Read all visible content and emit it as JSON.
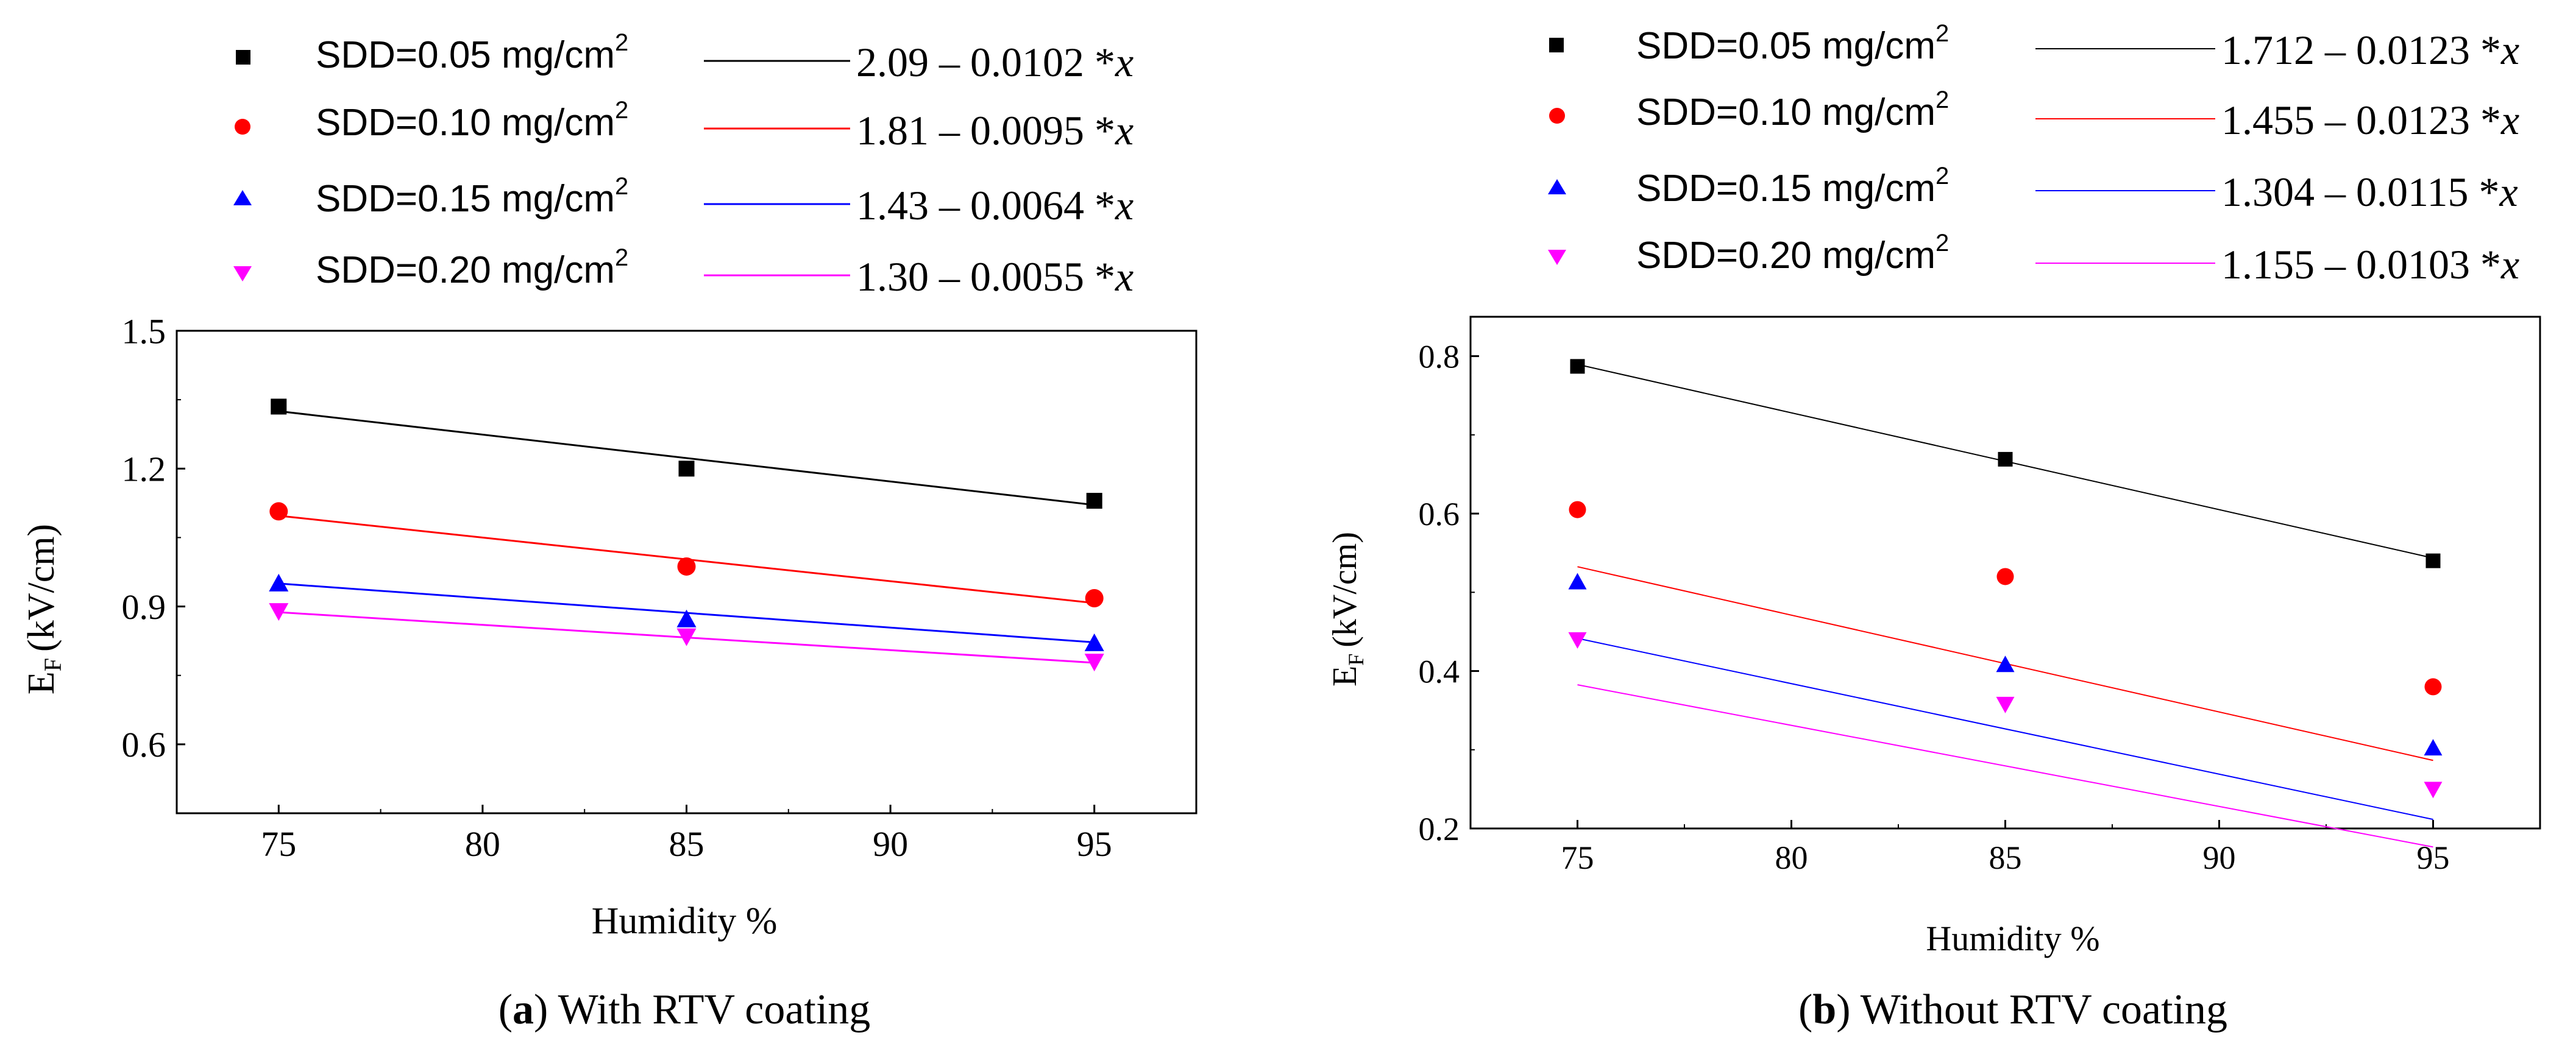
{
  "figure": {
    "panels": [
      {
        "caption_letter": "a",
        "caption_text": "With RTV coating",
        "legend": [
          {
            "series": "SDD=0.05 mg/cm",
            "sup": "2",
            "equation": "2.09 – 0.0102 *",
            "variable": "x"
          },
          {
            "series": "SDD=0.10 mg/cm",
            "sup": "2",
            "equation": "1.81 – 0.0095 *",
            "variable": "x"
          },
          {
            "series": "SDD=0.15 mg/cm",
            "sup": "2",
            "equation": "1.43 – 0.0064 *",
            "variable": "x"
          },
          {
            "series": "SDD=0.20 mg/cm",
            "sup": "2",
            "equation": "1.30 – 0.0055 *",
            "variable": "x"
          }
        ]
      },
      {
        "caption_letter": "b",
        "caption_text": "Without RTV coating",
        "legend": [
          {
            "series": "SDD=0.05 mg/cm",
            "sup": "2",
            "equation": "1.712 – 0.0123 *",
            "variable": "x"
          },
          {
            "series": "SDD=0.10 mg/cm",
            "sup": "2",
            "equation": "1.455 – 0.0123 *",
            "variable": "x"
          },
          {
            "series": "SDD=0.15 mg/cm",
            "sup": "2",
            "equation": "1.304 – 0.0115 *",
            "variable": "x"
          },
          {
            "series": "SDD=0.20 mg/cm",
            "sup": "2",
            "equation": "1.155 – 0.0103 *",
            "variable": "x"
          }
        ]
      }
    ]
  },
  "chart_data": [
    {
      "type": "scatter",
      "title": "",
      "xlabel": "Humidity %",
      "ylabel": "E",
      "ylabel_sub": "F",
      "ylabel_unit": "(kV/cm)",
      "xlim": [
        72.5,
        97.5
      ],
      "ylim": [
        0.45,
        1.5
      ],
      "xticks": [
        75,
        80,
        85,
        90,
        95
      ],
      "yticks": [
        0.6,
        0.9,
        1.2,
        1.5
      ],
      "ytick_labels": [
        "0.6",
        "0.9",
        "1.2",
        "1.5"
      ],
      "grid": false,
      "legend_position": "above plot",
      "x": [
        75,
        85,
        95
      ],
      "series": [
        {
          "name": "SDD=0.05 mg/cm2",
          "marker": "square",
          "color": "#000000",
          "values": [
            1.335,
            1.2,
            1.13
          ],
          "fit": {
            "intercept": 2.09,
            "slope": -0.0102
          }
        },
        {
          "name": "SDD=0.10 mg/cm2",
          "marker": "circle",
          "color": "#ff0000",
          "values": [
            1.107,
            0.987,
            0.918
          ],
          "fit": {
            "intercept": 1.81,
            "slope": -0.0095
          }
        },
        {
          "name": "SDD=0.15 mg/cm2",
          "marker": "triangle-up",
          "color": "#0000ff",
          "values": [
            0.95,
            0.872,
            0.82
          ],
          "fit": {
            "intercept": 1.43,
            "slope": -0.0064
          }
        },
        {
          "name": "SDD=0.20 mg/cm2",
          "marker": "triangle-down",
          "color": "#ff00ff",
          "values": [
            0.89,
            0.835,
            0.78
          ],
          "fit": {
            "intercept": 1.3,
            "slope": -0.0055
          }
        }
      ]
    },
    {
      "type": "scatter",
      "title": "",
      "xlabel": "Humidity %",
      "ylabel": "E",
      "ylabel_sub": "F",
      "ylabel_unit": "(kV/cm)",
      "xlim": [
        72.5,
        97.5
      ],
      "ylim": [
        0.2,
        0.85
      ],
      "xticks": [
        75,
        80,
        85,
        90,
        95
      ],
      "yticks": [
        0.2,
        0.4,
        0.6,
        0.8
      ],
      "ytick_labels": [
        "0.2",
        "0.4",
        "0.6",
        "0.8"
      ],
      "grid": false,
      "legend_position": "above plot",
      "x": [
        75,
        85,
        95
      ],
      "series": [
        {
          "name": "SDD=0.05 mg/cm2",
          "marker": "square",
          "color": "#000000",
          "values": [
            0.787,
            0.669,
            0.54
          ],
          "fit": {
            "intercept": 1.712,
            "slope": -0.0123
          }
        },
        {
          "name": "SDD=0.10 mg/cm2",
          "marker": "circle",
          "color": "#ff0000",
          "values": [
            0.605,
            0.52,
            0.38
          ],
          "fit": {
            "intercept": 1.455,
            "slope": -0.0123
          }
        },
        {
          "name": "SDD=0.15 mg/cm2",
          "marker": "triangle-up",
          "color": "#0000ff",
          "values": [
            0.513,
            0.408,
            0.302
          ],
          "fit": {
            "intercept": 1.304,
            "slope": -0.0115
          }
        },
        {
          "name": "SDD=0.20 mg/cm2",
          "marker": "triangle-down",
          "color": "#ff00ff",
          "values": [
            0.44,
            0.358,
            0.25
          ],
          "fit": {
            "intercept": 1.155,
            "slope": -0.0103
          }
        }
      ]
    }
  ]
}
